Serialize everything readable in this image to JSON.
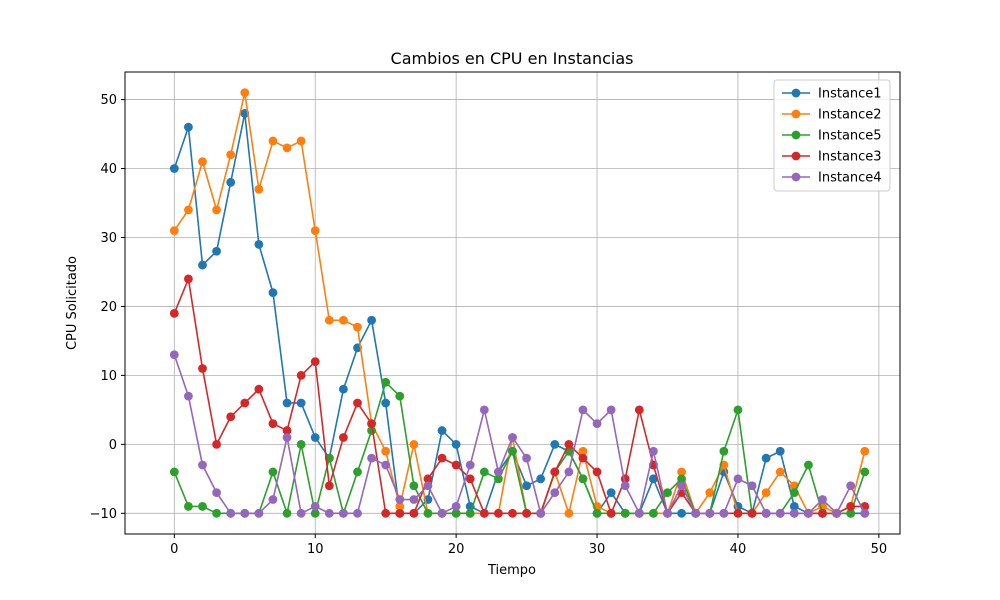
{
  "chart_data": {
    "type": "line",
    "title": "Cambios en CPU en Instancias",
    "xlabel": "Tiempo",
    "ylabel": "CPU Solicitado",
    "xlim": [
      -3.5,
      51.5
    ],
    "ylim": [
      -13,
      54
    ],
    "xticks": [
      0,
      10,
      20,
      30,
      40,
      50
    ],
    "yticks": [
      -10,
      0,
      10,
      20,
      30,
      40,
      50
    ],
    "grid": true,
    "legend_position": "top-right",
    "x": [
      0,
      1,
      2,
      3,
      4,
      5,
      6,
      7,
      8,
      9,
      10,
      11,
      12,
      13,
      14,
      15,
      16,
      17,
      18,
      19,
      20,
      21,
      22,
      23,
      24,
      25,
      26,
      27,
      28,
      29,
      30,
      31,
      32,
      33,
      34,
      35,
      36,
      37,
      38,
      39,
      40,
      41,
      42,
      43,
      44,
      45,
      46,
      47,
      48,
      49
    ],
    "series": [
      {
        "name": "Instance1",
        "color": "#1f77b4",
        "values": [
          40,
          46,
          26,
          28,
          38,
          48,
          29,
          22,
          6,
          6,
          1,
          -2,
          8,
          14,
          18,
          6,
          -10,
          -10,
          -8,
          2,
          0,
          -9,
          -10,
          -4,
          -1,
          -6,
          -5,
          0,
          -1,
          -5,
          -10,
          -7,
          -10,
          -10,
          -5,
          -10,
          -10,
          -10,
          -10,
          -4,
          -9,
          -10,
          -2,
          -1,
          -9,
          -10,
          -10,
          -10,
          -10,
          -10
        ]
      },
      {
        "name": "Instance2",
        "color": "#ff7f0e",
        "values": [
          31,
          34,
          41,
          34,
          42,
          51,
          37,
          44,
          43,
          44,
          31,
          18,
          18,
          17,
          3,
          -1,
          -9,
          0,
          -10,
          -10,
          -10,
          -10,
          -10,
          -10,
          1,
          -10,
          -10,
          -4,
          -10,
          -1,
          -9,
          -10,
          -10,
          -10,
          -10,
          -10,
          -4,
          -10,
          -7,
          -3,
          -10,
          -10,
          -7,
          -4,
          -6,
          -10,
          -9,
          -10,
          -9,
          -1
        ]
      },
      {
        "name": "Instance5",
        "color": "#2ca02c",
        "values": [
          -4,
          -9,
          -9,
          -10,
          -10,
          -10,
          -10,
          -4,
          -10,
          0,
          -10,
          -2,
          -10,
          -4,
          2,
          9,
          7,
          -6,
          -10,
          -10,
          -10,
          -10,
          -4,
          -5,
          -1,
          -10,
          -10,
          -4,
          -1,
          -5,
          -10,
          -10,
          -10,
          -10,
          -10,
          -7,
          -5,
          -10,
          -10,
          -1,
          5,
          -10,
          -10,
          -10,
          -7,
          -3,
          -10,
          -10,
          -10,
          -4
        ]
      },
      {
        "name": "Instance3",
        "color": "#d62728",
        "values": [
          19,
          24,
          11,
          0,
          4,
          6,
          8,
          3,
          2,
          10,
          12,
          -6,
          1,
          6,
          3,
          -10,
          -10,
          -10,
          -5,
          -2,
          -3,
          -5,
          -10,
          -10,
          -10,
          -10,
          -10,
          -4,
          0,
          -2,
          -4,
          -10,
          -5,
          5,
          -3,
          -10,
          -7,
          -10,
          -10,
          -10,
          -10,
          -10,
          -10,
          -10,
          -10,
          -10,
          -10,
          -10,
          -9,
          -9
        ]
      },
      {
        "name": "Instance4",
        "color": "#9467bd",
        "values": [
          13,
          7,
          -3,
          -7,
          -10,
          -10,
          -10,
          -8,
          1,
          -10,
          -9,
          -10,
          -10,
          -10,
          -2,
          -3,
          -8,
          -8,
          -6,
          -10,
          -9,
          -3,
          5,
          -4,
          1,
          -2,
          -10,
          -7,
          -4,
          5,
          3,
          5,
          -6,
          -10,
          -1,
          -10,
          -6,
          -10,
          -10,
          -10,
          -5,
          -6,
          -10,
          -10,
          -10,
          -10,
          -8,
          -10,
          -6,
          -10
        ]
      }
    ]
  }
}
